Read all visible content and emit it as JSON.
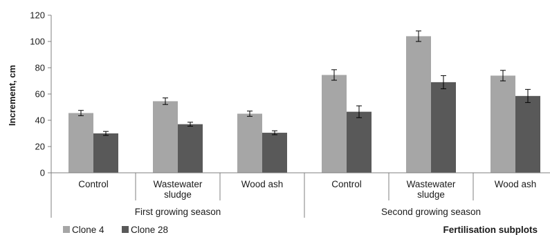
{
  "chart_data": {
    "type": "bar",
    "ylabel": "Increment, cm",
    "ylim": [
      0,
      120
    ],
    "yticks": [
      0,
      20,
      40,
      60,
      80,
      100,
      120
    ],
    "grid": false,
    "legend_position": "bottom-left",
    "groups": [
      {
        "label": "First growing season",
        "categories": [
          "Control",
          "Wastewater\nsludge",
          "Wood ash"
        ]
      },
      {
        "label": "Second growing season",
        "categories": [
          "Control",
          "Wastewater\nsludge",
          "Wood ash"
        ]
      }
    ],
    "series": [
      {
        "name": "Clone 4",
        "color": "#a6a6a6",
        "values": [
          45.5,
          54.5,
          45,
          74.5,
          104,
          74
        ],
        "errors": [
          2,
          2.5,
          2,
          4,
          4,
          4
        ]
      },
      {
        "name": "Clone 28",
        "color": "#595959",
        "values": [
          30,
          37,
          30.5,
          46.5,
          69,
          58.5
        ],
        "errors": [
          1.5,
          1.5,
          1.5,
          4.5,
          5,
          5
        ]
      }
    ],
    "footer": "Fertilisation  subplots"
  }
}
